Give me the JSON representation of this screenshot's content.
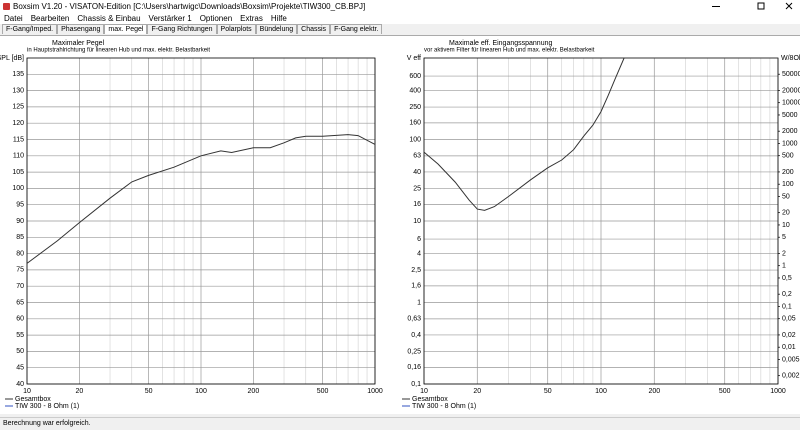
{
  "window": {
    "title": "Boxsim V1.20 - VISATON-Edition [C:\\Users\\hartwigc\\Downloads\\Boxsim\\Projekte\\TIW300_CB.BPJ]",
    "menu": [
      "Datei",
      "Bearbeiten",
      "Chassis & Einbau",
      "Verstärker 1",
      "Optionen",
      "Extras",
      "Hilfe"
    ],
    "tabs": [
      "F-Gang/Imped.",
      "Phasengang",
      "max. Pegel",
      "F-Gang Richtungen",
      "Polarplots",
      "Bündelung",
      "Chassis",
      "F-Gang elektr."
    ],
    "active_tab": 2,
    "status": "Berechnung war erfolgreich."
  },
  "chart_data": [
    {
      "type": "line",
      "title": "Maximaler Pegel",
      "subtitle": "in Hauptstrahlrichtung für linearen Hub und max. elektr. Belastbarkeit",
      "y_label": "SPL [dB]",
      "xscale": "log",
      "yscale": "linear",
      "xlim": [
        10,
        1000
      ],
      "xticks": [
        10,
        20,
        50,
        100,
        200,
        500,
        1000
      ],
      "xminor": [
        30,
        40,
        60,
        70,
        80,
        90,
        300,
        400,
        600,
        700,
        800,
        900
      ],
      "ylim": [
        40,
        140
      ],
      "yticks": [
        40,
        45,
        50,
        55,
        60,
        65,
        70,
        75,
        80,
        85,
        90,
        95,
        100,
        105,
        110,
        115,
        120,
        125,
        130,
        135
      ],
      "grid": true,
      "x": [
        10,
        15,
        20,
        30,
        40,
        50,
        70,
        100,
        130,
        150,
        200,
        250,
        300,
        350,
        400,
        500,
        700,
        800,
        1000
      ],
      "series": [
        {
          "name": "Gesamtbox",
          "color": "#333333",
          "values": [
            77,
            84,
            89.5,
            97,
            102,
            104,
            106.5,
            110,
            111.5,
            111,
            112.5,
            112.5,
            114,
            115.5,
            116,
            116,
            116.5,
            116.2,
            113.5
          ]
        }
      ],
      "legend_extra": [
        {
          "name": "TIW 300 - 8 Ohm (1)",
          "color": "#3050c0"
        }
      ]
    },
    {
      "type": "line",
      "title": "Maximale eff. Eingangsspannung",
      "subtitle": "vor aktivem Filter für linearen Hub und max. elektr. Belastbarkeit",
      "y_label": "V eff",
      "y2_label": "W/8Ohm",
      "xscale": "log",
      "yscale": "log",
      "xlim": [
        10,
        1000
      ],
      "xticks": [
        10,
        20,
        50,
        100,
        200,
        500,
        1000
      ],
      "xminor": [
        30,
        40,
        60,
        70,
        80,
        90,
        300,
        400,
        600,
        700,
        800,
        900
      ],
      "ylim": [
        0.1,
        1000
      ],
      "yticks": [
        {
          "value": 0.1,
          "label": "0,1"
        },
        {
          "value": 0.16,
          "label": "0,16"
        },
        {
          "value": 0.25,
          "label": "0,25"
        },
        {
          "value": 0.4,
          "label": "0,4"
        },
        {
          "value": 0.63,
          "label": "0,63"
        },
        1,
        {
          "value": 1.6,
          "label": "1,6"
        },
        {
          "value": 2.5,
          "label": "2,5"
        },
        4,
        6,
        10,
        16,
        25,
        40,
        63,
        100,
        160,
        250,
        400,
        600
      ],
      "y2lim": [
        0.00125,
        125000
      ],
      "y2ticks": [
        {
          "value": 0.002,
          "label": "0,002"
        },
        {
          "value": 0.005,
          "label": "0,005"
        },
        {
          "value": 0.01,
          "label": "0,01"
        },
        {
          "value": 0.02,
          "label": "0,02"
        },
        {
          "value": 0.05,
          "label": "0,05"
        },
        {
          "value": 0.1,
          "label": "0,1"
        },
        {
          "value": 0.2,
          "label": "0,2"
        },
        {
          "value": 0.5,
          "label": "0,5"
        },
        1,
        2,
        5,
        10,
        20,
        50,
        100,
        200,
        500,
        1000,
        2000,
        5000,
        10000,
        20000,
        50000
      ],
      "grid": true,
      "x": [
        10,
        12,
        15,
        18,
        20,
        22,
        25,
        30,
        40,
        50,
        60,
        70,
        80,
        90,
        100,
        110,
        120,
        135,
        1000
      ],
      "series": [
        {
          "name": "Gesamtbox",
          "color": "#333333",
          "values": [
            70,
            50,
            30,
            18,
            14,
            13.5,
            15,
            20,
            32,
            45,
            56,
            75,
            110,
            150,
            220,
            350,
            550,
            1000,
            1000
          ]
        }
      ],
      "legend_extra": [
        {
          "name": "TIW 300 - 8 Ohm (1)",
          "color": "#3050c0"
        }
      ]
    }
  ]
}
